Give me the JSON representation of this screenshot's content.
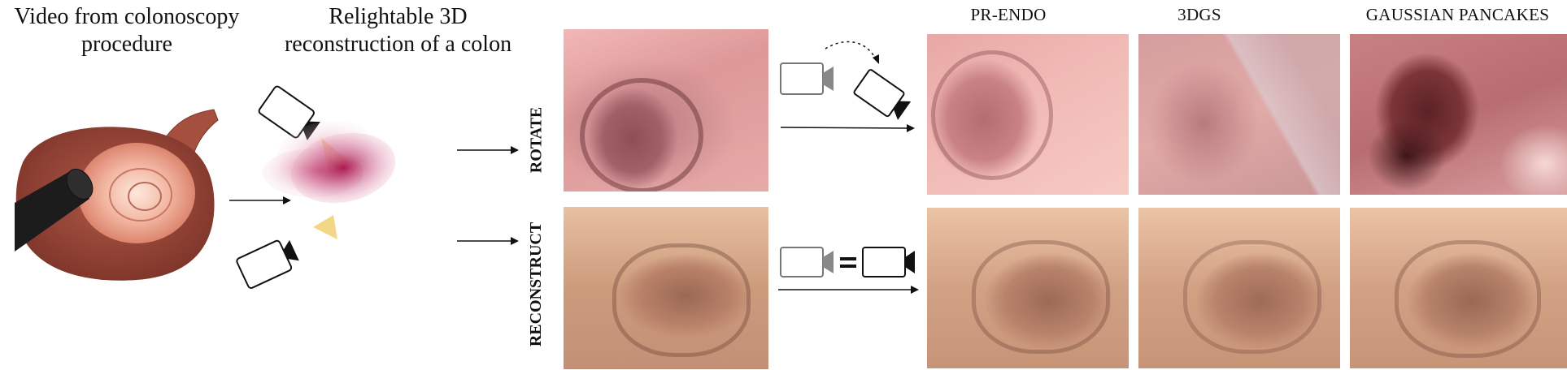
{
  "left": {
    "title_input": "Video from colonoscopy procedure",
    "title_recon": "Relightable 3D reconstruction of a colon"
  },
  "rows": [
    {
      "label": "ROTATE"
    },
    {
      "label": "RECONSTRUCT"
    }
  ],
  "columns": [
    "PR-ENDO",
    "3DGS",
    "GAUSSIAN PANCAKES"
  ],
  "colors": {
    "rotate_tissue": "#d99a9a",
    "reconstruct_tissue": "#c99a7e",
    "gaussian_blob": "#a8124c",
    "light_cone": "#f3d27a",
    "colon_wall": "#9b4b3c"
  }
}
